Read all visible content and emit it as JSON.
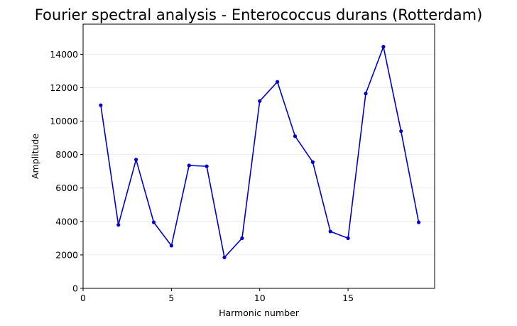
{
  "chart_data": {
    "type": "line",
    "title": "Fourier spectral analysis - Enterococcus durans (Rotterdam)",
    "xlabel": "Harmonic number",
    "ylabel": "Amplitude",
    "xlim": [
      0,
      19.9
    ],
    "ylim": [
      0,
      15800
    ],
    "xticks": [
      0,
      5,
      10,
      15
    ],
    "yticks": [
      0,
      2000,
      4000,
      6000,
      8000,
      10000,
      12000,
      14000
    ],
    "grid": "y",
    "series": [
      {
        "color": "#0000cc",
        "x": [
          1,
          2,
          3,
          4,
          5,
          6,
          7,
          8,
          9,
          10,
          11,
          12,
          13,
          14,
          15,
          16,
          17,
          18,
          19
        ],
        "y": [
          10950,
          3800,
          7700,
          3950,
          2550,
          7350,
          7300,
          1850,
          3000,
          11200,
          12350,
          9100,
          7550,
          3400,
          3000,
          11650,
          14450,
          9400,
          3950
        ]
      }
    ]
  }
}
